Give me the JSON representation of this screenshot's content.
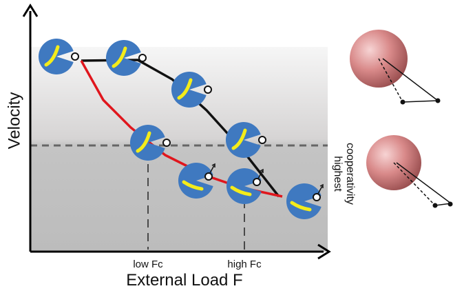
{
  "axes": {
    "y_label": "Velocity",
    "x_label": "External Load F"
  },
  "markers": {
    "low": "low Fc",
    "high": "high Fc"
  },
  "annotation": {
    "line1": "highest",
    "line2": "cooperativity"
  }
}
